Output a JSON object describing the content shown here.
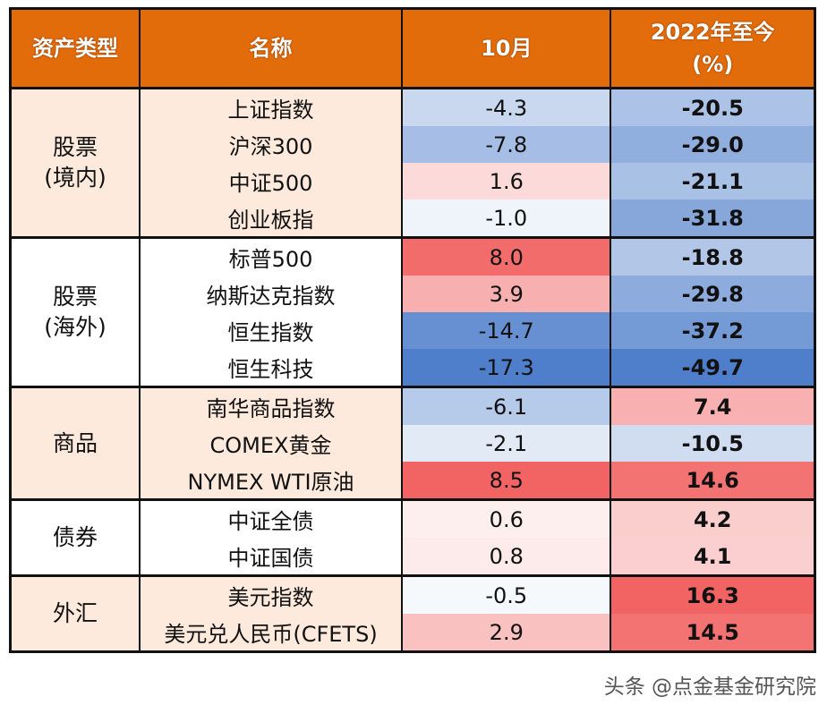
{
  "headers": [
    "资产类型",
    "名称",
    "10月",
    "2022年至今\n(%)"
  ],
  "groups": [
    {
      "category": "股票\n(境内)",
      "shade": "#fdeadd",
      "rows": [
        {
          "name": "上证指数",
          "oct": "-4.3",
          "ytd": "-20.5"
        },
        {
          "name": "沪深300",
          "oct": "-7.8",
          "ytd": "-29.0"
        },
        {
          "name": "中证500",
          "oct": "1.6",
          "ytd": "-21.1"
        },
        {
          "name": "创业板指",
          "oct": "-1.0",
          "ytd": "-31.8"
        }
      ]
    },
    {
      "category": "股票\n(海外)",
      "shade": "#ffffff",
      "rows": [
        {
          "name": "标普500",
          "oct": "8.0",
          "ytd": "-18.8"
        },
        {
          "name": "纳斯达克指数",
          "oct": "3.9",
          "ytd": "-29.8"
        },
        {
          "name": "恒生指数",
          "oct": "-14.7",
          "ytd": "-37.2"
        },
        {
          "name": "恒生科技",
          "oct": "-17.3",
          "ytd": "-49.7"
        }
      ]
    },
    {
      "category": "商品",
      "shade": "#fdeadd",
      "rows": [
        {
          "name": "南华商品指数",
          "oct": "-6.1",
          "ytd": "7.4"
        },
        {
          "name": "COMEX黄金",
          "oct": "-2.1",
          "ytd": "-10.5"
        },
        {
          "name": "NYMEX WTI原油",
          "oct": "8.5",
          "ytd": "14.6"
        }
      ]
    },
    {
      "category": "债券",
      "shade": "#ffffff",
      "rows": [
        {
          "name": "中证全债",
          "oct": "0.6",
          "ytd": "4.2"
        },
        {
          "name": "中证国债",
          "oct": "0.8",
          "ytd": "4.1"
        }
      ]
    },
    {
      "category": "外汇",
      "shade": "#fdeadd",
      "rows": [
        {
          "name": "美元指数",
          "oct": "-0.5",
          "ytd": "16.3"
        },
        {
          "name": "美元兑人民币(CFETS)",
          "oct": "2.9",
          "ytd": "14.5"
        }
      ]
    }
  ],
  "colors": {
    "header": "#e36c0a",
    "negative": "#4f7fcb",
    "positive": "#f26464",
    "neutral": "#ffffff"
  },
  "watermark": "头条 @点金基金研究院"
}
